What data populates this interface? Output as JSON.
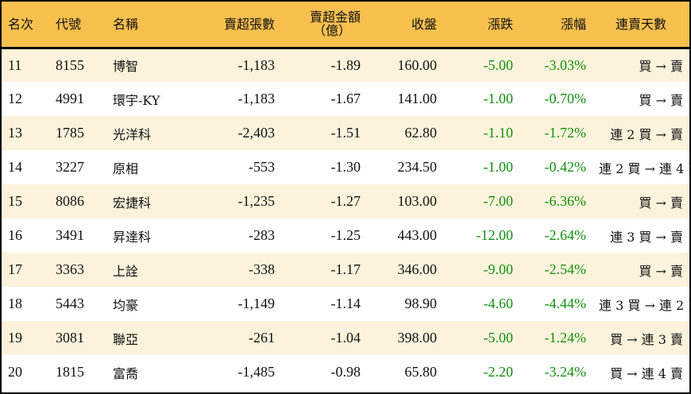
{
  "table": {
    "headers": {
      "rank": "名次",
      "code": "代號",
      "name": "名稱",
      "sell_lots": "賣超張數",
      "sell_amount_line1": "賣超金額",
      "sell_amount_line2": "（億）",
      "close": "收盤",
      "change": "漲跌",
      "change_pct": "漲幅",
      "consecutive": "連賣天數"
    },
    "rows": [
      {
        "rank": "11",
        "code": "8155",
        "name": "博智",
        "sell_lots": "-1,183",
        "sell_amount": "-1.89",
        "close": "160.00",
        "change": "-5.00",
        "change_pct": "-3.03%",
        "consecutive": "買 → 賣"
      },
      {
        "rank": "12",
        "code": "4991",
        "name": "環宇-KY",
        "sell_lots": "-1,183",
        "sell_amount": "-1.67",
        "close": "141.00",
        "change": "-1.00",
        "change_pct": "-0.70%",
        "consecutive": "買 → 賣"
      },
      {
        "rank": "13",
        "code": "1785",
        "name": "光洋科",
        "sell_lots": "-2,403",
        "sell_amount": "-1.51",
        "close": "62.80",
        "change": "-1.10",
        "change_pct": "-1.72%",
        "consecutive": "連 2 買 → 賣"
      },
      {
        "rank": "14",
        "code": "3227",
        "name": "原相",
        "sell_lots": "-553",
        "sell_amount": "-1.30",
        "close": "234.50",
        "change": "-1.00",
        "change_pct": "-0.42%",
        "consecutive": "連 2 買 → 連 4 賣"
      },
      {
        "rank": "15",
        "code": "8086",
        "name": "宏捷科",
        "sell_lots": "-1,235",
        "sell_amount": "-1.27",
        "close": "103.00",
        "change": "-7.00",
        "change_pct": "-6.36%",
        "consecutive": "買 → 賣"
      },
      {
        "rank": "16",
        "code": "3491",
        "name": "昇達科",
        "sell_lots": "-283",
        "sell_amount": "-1.25",
        "close": "443.00",
        "change": "-12.00",
        "change_pct": "-2.64%",
        "consecutive": "連 3 買 → 賣"
      },
      {
        "rank": "17",
        "code": "3363",
        "name": "上詮",
        "sell_lots": "-338",
        "sell_amount": "-1.17",
        "close": "346.00",
        "change": "-9.00",
        "change_pct": "-2.54%",
        "consecutive": "買 → 賣"
      },
      {
        "rank": "18",
        "code": "5443",
        "name": "均豪",
        "sell_lots": "-1,149",
        "sell_amount": "-1.14",
        "close": "98.90",
        "change": "-4.60",
        "change_pct": "-4.44%",
        "consecutive": "連 3 買 → 連 2 賣"
      },
      {
        "rank": "19",
        "code": "3081",
        "name": "聯亞",
        "sell_lots": "-261",
        "sell_amount": "-1.04",
        "close": "398.00",
        "change": "-5.00",
        "change_pct": "-1.24%",
        "consecutive": "買 → 連 3 賣"
      },
      {
        "rank": "20",
        "code": "1815",
        "name": "富喬",
        "sell_lots": "-1,485",
        "sell_amount": "-0.98",
        "close": "65.80",
        "change": "-2.20",
        "change_pct": "-3.24%",
        "consecutive": "買 → 連 4 賣"
      }
    ]
  },
  "colors": {
    "header_bg": "#f8c04e",
    "row_alt_bg": "#fdf3dc",
    "row_bg": "#ffffff",
    "negative_change": "#12900f",
    "border": "#000000"
  }
}
